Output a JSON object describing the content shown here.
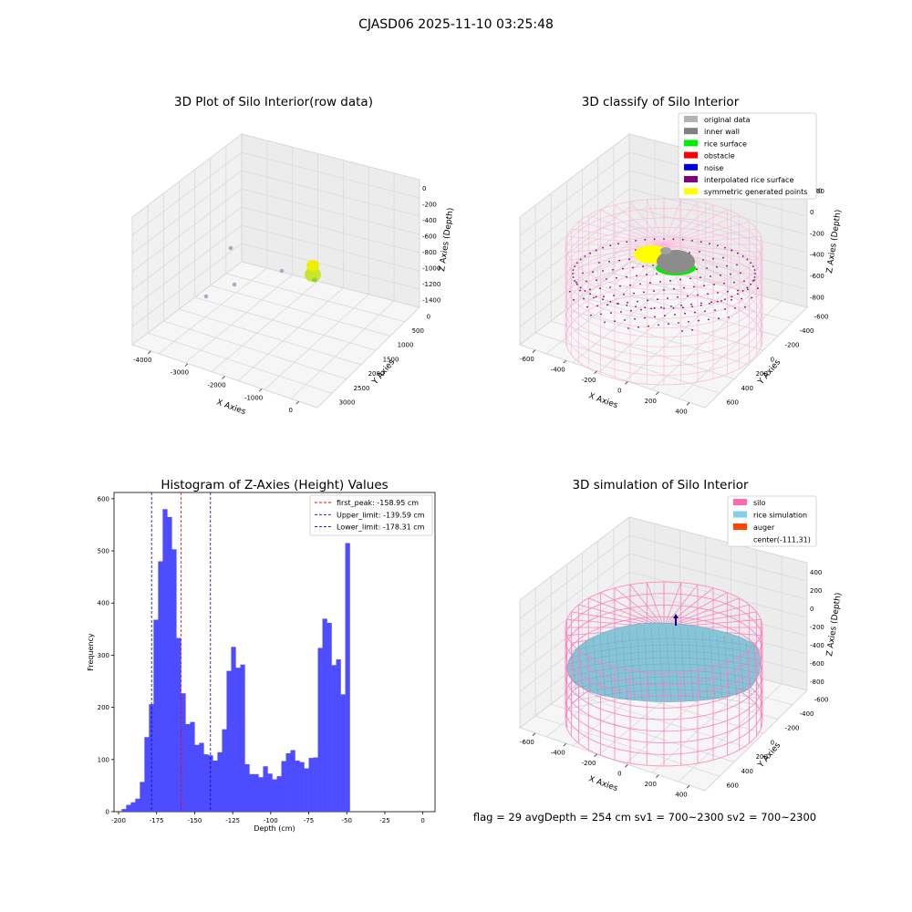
{
  "suptitle": "CJASD06 2025-11-10 03:25:48",
  "footer": "flag = 29  avgDepth = 254 cm  sv1 = 700~2300  sv2 = 700~2300",
  "colors": {
    "hist_bar": "#4d4dff",
    "first_peak": "#ff0000",
    "limits": "#0000cc",
    "silo": "#ff69b4",
    "rice": "#87ceeb",
    "auger": "#ff4500",
    "rice_surface": "#00ee00",
    "inner_wall": "#808080",
    "symmetric": "#ffff00",
    "interpolated": "#800080"
  },
  "chart_data": [
    {
      "type": "scatter",
      "title": "3D Plot of Silo Interior(row data)",
      "xlabel": "X Axies",
      "ylabel": "Y Axies",
      "zlabel": "Z Axies (Depth)",
      "x_ticks": [
        "-4000",
        "-3000",
        "-2000",
        "-1000",
        "0"
      ],
      "y_ticks": [
        "0",
        "500",
        "1000",
        "1500",
        "2000",
        "2500",
        "3000"
      ],
      "z_ticks": [
        "0",
        "-200",
        "-400",
        "-600",
        "-800",
        "-1000",
        "-1200",
        "-1400"
      ],
      "outlier_points_count": 4
    },
    {
      "type": "scatter",
      "title": "3D classify of Silo Interior",
      "xlabel": "X Axies",
      "ylabel": "Y Axies",
      "zlabel": "Z Axies (Depth)",
      "x_ticks": [
        "-600",
        "-400",
        "-200",
        "0",
        "200",
        "400"
      ],
      "y_ticks": [
        "-600",
        "-400",
        "-200",
        "0",
        "200",
        "400",
        "600"
      ],
      "z_ticks": [
        "200",
        "0",
        "-200",
        "-400",
        "-600",
        "-800"
      ],
      "z_ticks_partial": [
        "00"
      ],
      "legend": [
        {
          "label": "original data",
          "color": "#b3b3b3"
        },
        {
          "label": "inner wall",
          "color": "#808080"
        },
        {
          "label": "rice surface",
          "color": "#00ee00"
        },
        {
          "label": "obstacle",
          "color": "#ff0000"
        },
        {
          "label": "noise",
          "color": "#0000dd"
        },
        {
          "label": "interpolated rice surface",
          "color": "#800080"
        },
        {
          "label": "symmetric generated points",
          "color": "#ffff00"
        }
      ],
      "legend_loc": "upper right"
    },
    {
      "type": "bar",
      "title": "Histogram of Z-Axies (Height) Values",
      "xlabel": "Depth (cm)",
      "ylabel": "Frequency",
      "xlim": [
        -203,
        8
      ],
      "ylim": [
        0,
        612
      ],
      "x_ticks": [
        -200,
        -175,
        -150,
        -125,
        -100,
        -75,
        -50,
        -25,
        0
      ],
      "y_ticks": [
        0,
        100,
        200,
        300,
        400,
        500,
        600
      ],
      "bin_start": -198,
      "bin_width": 3,
      "values": [
        5,
        13,
        18,
        25,
        57,
        143,
        206,
        368,
        480,
        580,
        565,
        503,
        333,
        227,
        168,
        172,
        128,
        132,
        110,
        108,
        98,
        114,
        158,
        270,
        316,
        276,
        282,
        91,
        72,
        72,
        66,
        87,
        73,
        62,
        68,
        97,
        112,
        118,
        98,
        95,
        83,
        103,
        104,
        314,
        370,
        362,
        281,
        292,
        225,
        515
      ],
      "vlines": [
        {
          "x": -158.95,
          "label": "first_peak: -158.95 cm",
          "color": "#ff0000"
        },
        {
          "x": -139.59,
          "label": "Upper_limit: -139.59 cm",
          "color": "#0000cc"
        },
        {
          "x": -178.31,
          "label": "Lower_limit: -178.31 cm",
          "color": "#0000cc"
        }
      ],
      "legend_loc": "upper right"
    },
    {
      "type": "surface",
      "title": "3D simulation of Silo Interior",
      "xlabel": "X Axies",
      "ylabel": "Y Axies",
      "zlabel": "Z Axies (Depth)",
      "x_ticks": [
        "-600",
        "-400",
        "-200",
        "0",
        "200",
        "400"
      ],
      "y_ticks": [
        "-600",
        "-400",
        "-200",
        "0",
        "200",
        "400",
        "600"
      ],
      "z_ticks": [
        "400",
        "200",
        "0",
        "-200",
        "-400",
        "-600",
        "-800"
      ],
      "legend": [
        {
          "label": "silo",
          "color": "#ff69b4"
        },
        {
          "label": "rice simulation",
          "color": "#87ceeb"
        },
        {
          "label": "auger",
          "color": "#ff4500"
        },
        {
          "label": "center(-111,31)",
          "color": ""
        }
      ],
      "legend_loc": "upper right"
    }
  ]
}
